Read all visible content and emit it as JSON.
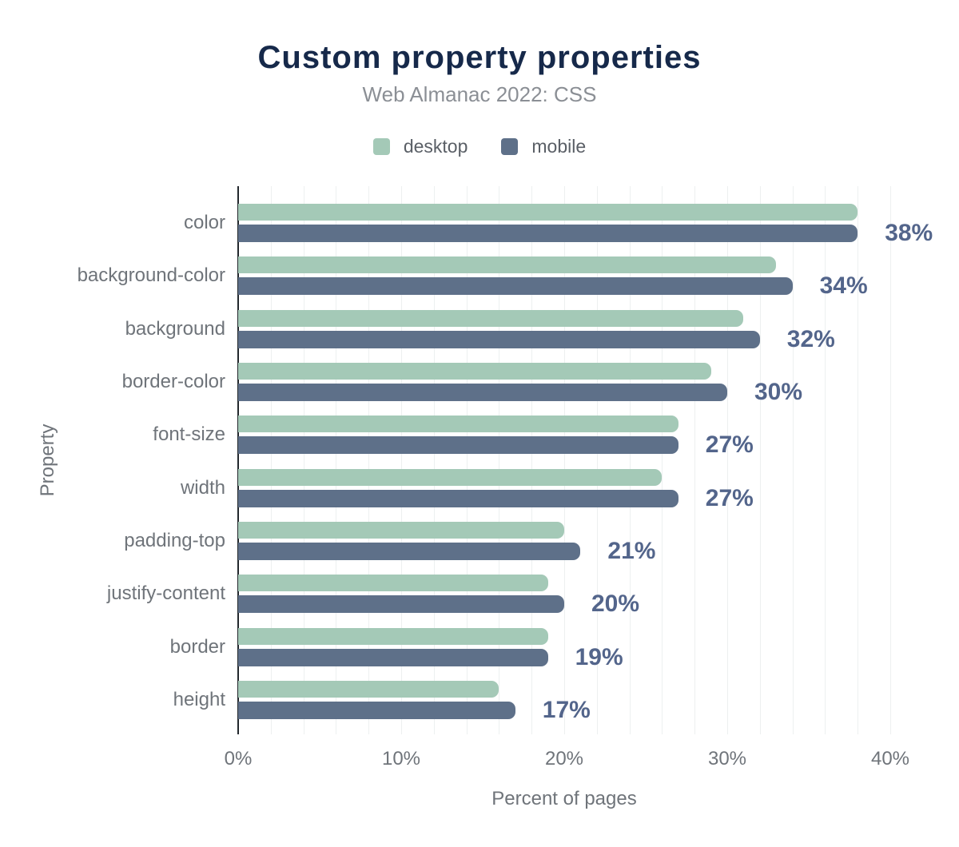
{
  "chart_data": {
    "type": "bar",
    "orientation": "horizontal",
    "title": "Custom property properties",
    "subtitle": "Web Almanac 2022: CSS",
    "categories": [
      "color",
      "background-color",
      "background",
      "border-color",
      "font-size",
      "width",
      "padding-top",
      "justify-content",
      "border",
      "height"
    ],
    "series": [
      {
        "name": "desktop",
        "color": "#a4c9b7",
        "values": [
          38,
          33,
          31,
          29,
          27,
          26,
          20,
          19,
          19,
          16
        ]
      },
      {
        "name": "mobile",
        "color": "#5e7089",
        "values": [
          38,
          34,
          32,
          30,
          27,
          27,
          21,
          20,
          19,
          17
        ]
      }
    ],
    "value_labels": [
      "38%",
      "34%",
      "32%",
      "30%",
      "27%",
      "27%",
      "21%",
      "20%",
      "19%",
      "17%"
    ],
    "value_labels_source": "mobile",
    "xlabel": "Percent of pages",
    "ylabel": "Property",
    "xlim": [
      0,
      40
    ],
    "x_ticks": [
      "0%",
      "10%",
      "20%",
      "30%",
      "40%"
    ],
    "x_tick_values": [
      0,
      10,
      20,
      30,
      40
    ],
    "gridlines": {
      "every_percent": 2,
      "color": "#edf0f0",
      "axis_line_color": "#23282d"
    },
    "legend_position": "top",
    "colors": {
      "title": "#16294a",
      "subtitle": "#8b8f95",
      "axis_text": "#6f747a",
      "value_label": "#53658b"
    }
  }
}
